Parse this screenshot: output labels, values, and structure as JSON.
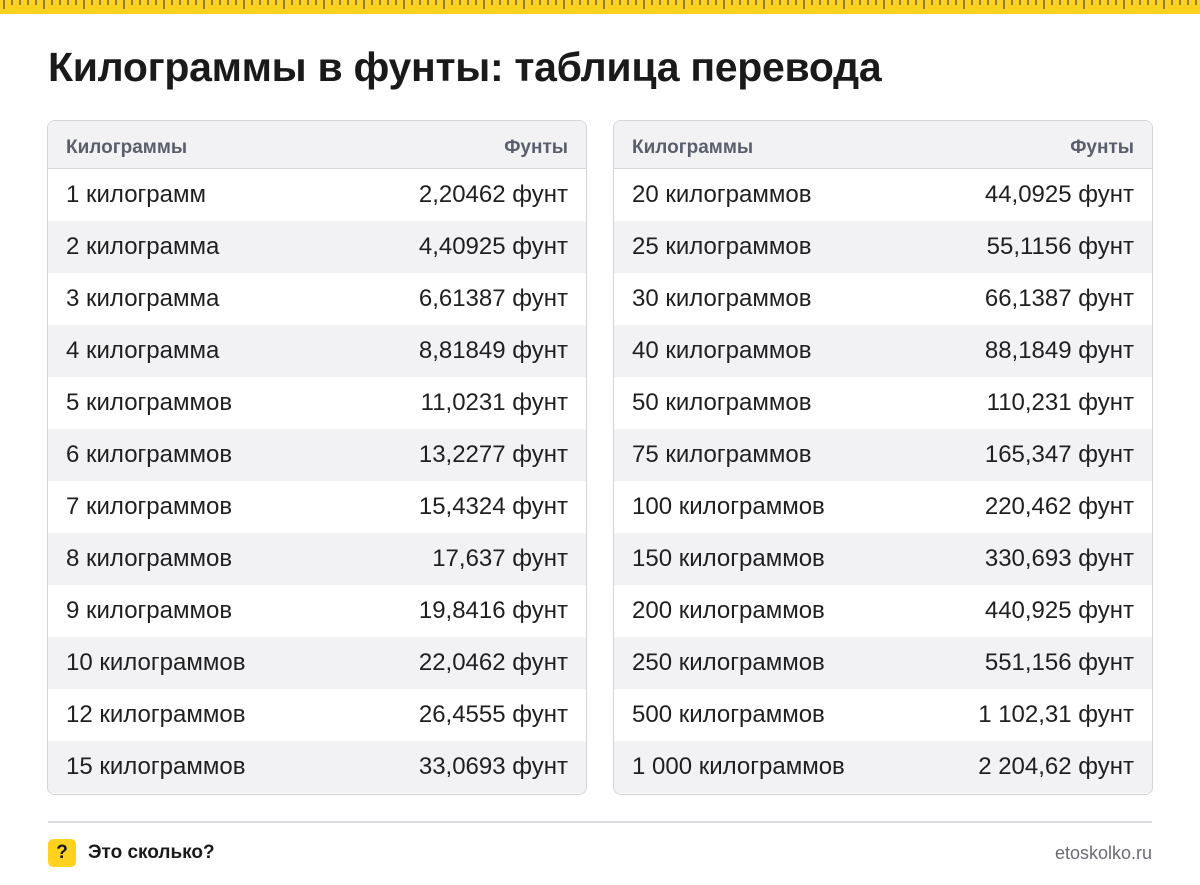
{
  "title": "Килограммы в фунты: таблица перевода",
  "accent_color": "#ffd21f",
  "tables": [
    {
      "header": {
        "col1": "Килограммы",
        "col2": "Фунты"
      },
      "rows": [
        {
          "kg": "1 килограмм",
          "lb": "2,20462 фунт"
        },
        {
          "kg": "2 килограмма",
          "lb": "4,40925 фунт"
        },
        {
          "kg": "3 килограмма",
          "lb": "6,61387 фунт"
        },
        {
          "kg": "4 килограмма",
          "lb": "8,81849 фунт"
        },
        {
          "kg": "5 килограммов",
          "lb": "11,0231 фунт"
        },
        {
          "kg": "6 килограммов",
          "lb": "13,2277 фунт"
        },
        {
          "kg": "7 килограммов",
          "lb": "15,4324 фунт"
        },
        {
          "kg": "8 килограммов",
          "lb": "17,637 фунт"
        },
        {
          "kg": "9 килограммов",
          "lb": "19,8416 фунт"
        },
        {
          "kg": "10 килограммов",
          "lb": "22,0462 фунт"
        },
        {
          "kg": "12 килограммов",
          "lb": "26,4555 фунт"
        },
        {
          "kg": "15 килограммов",
          "lb": "33,0693 фунт"
        }
      ]
    },
    {
      "header": {
        "col1": "Килограммы",
        "col2": "Фунты"
      },
      "rows": [
        {
          "kg": "20 килограммов",
          "lb": "44,0925 фунт"
        },
        {
          "kg": "25 килограммов",
          "lb": "55,1156 фунт"
        },
        {
          "kg": "30 килограммов",
          "lb": "66,1387 фунт"
        },
        {
          "kg": "40 килограммов",
          "lb": "88,1849 фунт"
        },
        {
          "kg": "50 килограммов",
          "lb": "110,231 фунт"
        },
        {
          "kg": "75 килограммов",
          "lb": "165,347 фунт"
        },
        {
          "kg": "100 килограммов",
          "lb": "220,462 фунт"
        },
        {
          "kg": "150 килограммов",
          "lb": "330,693 фунт"
        },
        {
          "kg": "200 килограммов",
          "lb": "440,925 фунт"
        },
        {
          "kg": "250 килограммов",
          "lb": "551,156 фунт"
        },
        {
          "kg": "500 килограммов",
          "lb": "1 102,31 фунт"
        },
        {
          "kg": "1 000 килограммов",
          "lb": "2 204,62 фунт"
        }
      ]
    }
  ],
  "footer": {
    "badge": "?",
    "brand": "Это сколько?",
    "site": "etoskolko.ru"
  }
}
